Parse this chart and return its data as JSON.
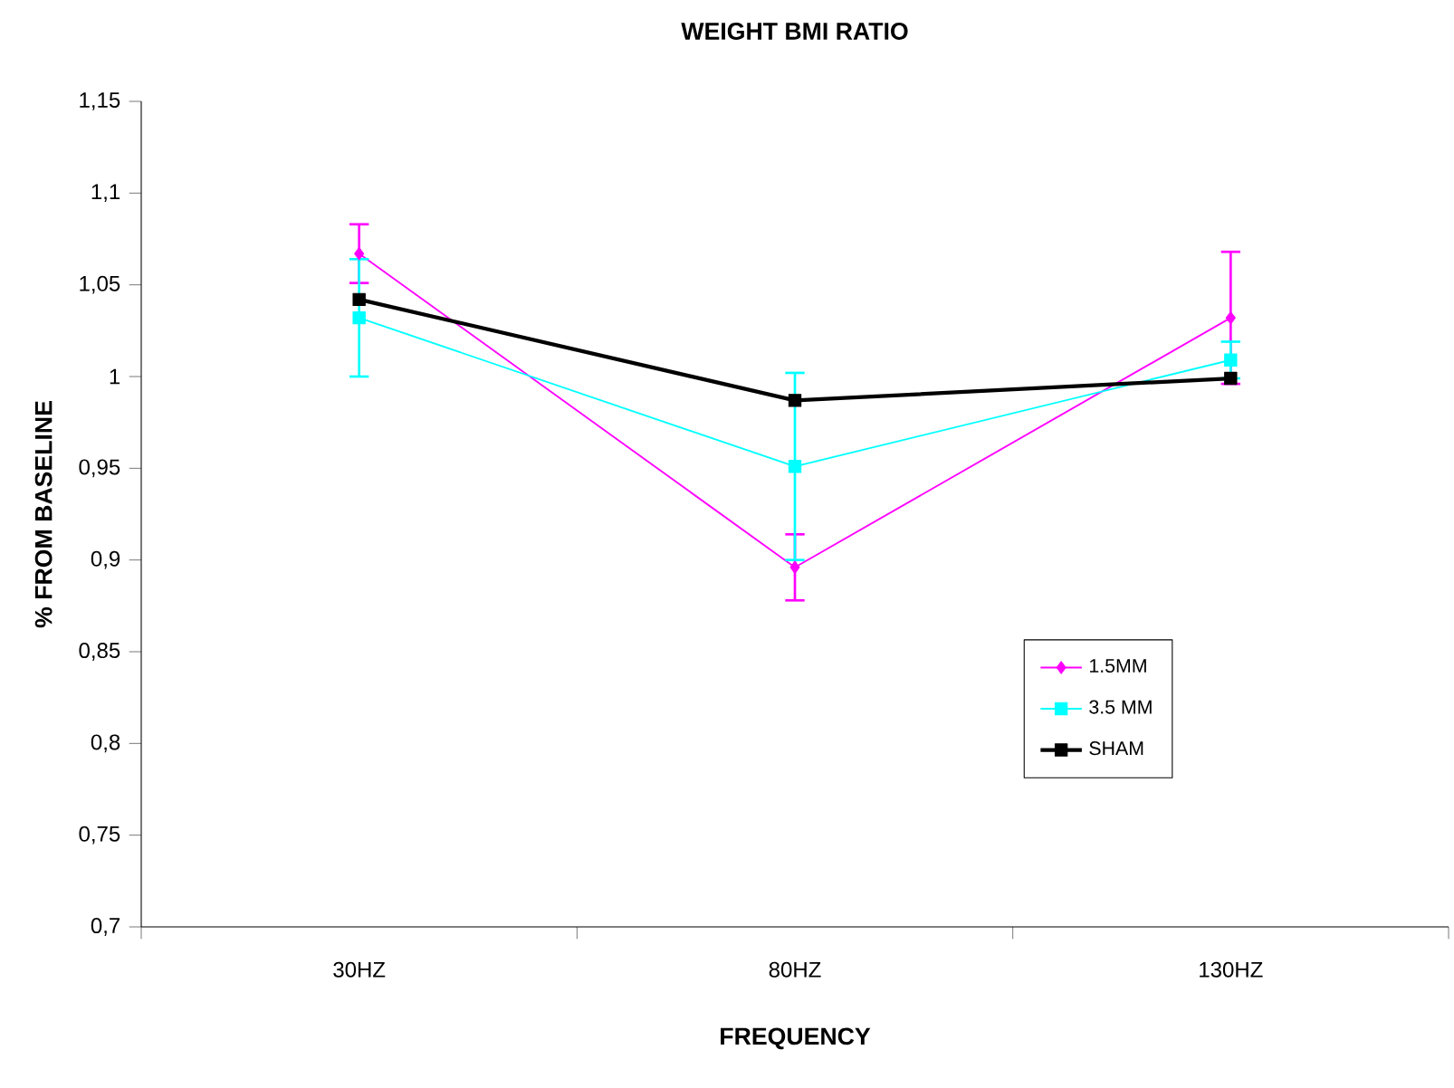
{
  "chart_data": {
    "type": "line",
    "title": "WEIGHT BMI RATIO",
    "xlabel": "FREQUENCY",
    "ylabel": "% FROM BASELINE",
    "categories": [
      "30HZ",
      "80HZ",
      "130HZ"
    ],
    "series": [
      {
        "name": "1.5MM",
        "color": "#ff00ff",
        "marker": "diamond",
        "values": [
          1.067,
          0.896,
          1.032
        ],
        "errors": [
          0.016,
          0.018,
          0.036
        ]
      },
      {
        "name": "3.5 MM",
        "color": "#00ffff",
        "marker": "square",
        "values": [
          1.032,
          0.951,
          1.009
        ],
        "errors": [
          0.032,
          0.051,
          0.01
        ]
      },
      {
        "name": "SHAM",
        "color": "#000000",
        "marker": "square",
        "values": [
          1.042,
          0.987,
          0.999
        ]
      }
    ],
    "ylim": [
      0.7,
      1.15
    ],
    "yticks": [
      {
        "value": 0.7,
        "label": "0,7"
      },
      {
        "value": 0.75,
        "label": "0,75"
      },
      {
        "value": 0.8,
        "label": "0,8"
      },
      {
        "value": 0.85,
        "label": "0,85"
      },
      {
        "value": 0.9,
        "label": "0,9"
      },
      {
        "value": 0.95,
        "label": "0,95"
      },
      1,
      {
        "value": 1.05,
        "label": "1,05"
      },
      {
        "value": 1.1,
        "label": "1,1"
      },
      {
        "value": 1.15,
        "label": "1,15"
      }
    ],
    "grid": false,
    "legend": "right"
  }
}
